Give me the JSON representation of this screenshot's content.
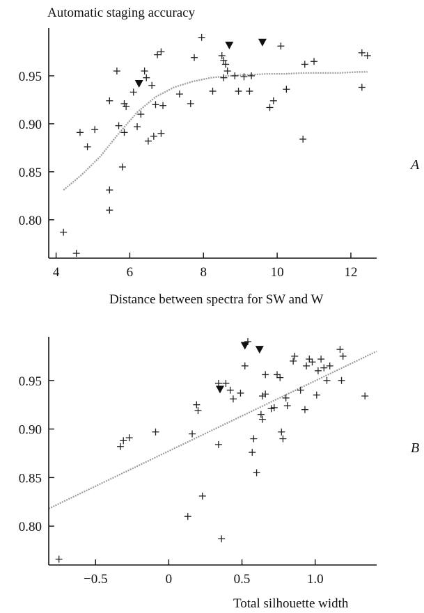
{
  "chart_data": [
    {
      "type": "scatter",
      "panel_label": "A",
      "title": "Automatic staging accuracy",
      "xlabel": "Distance between spectra for SW and W",
      "ylabel": "",
      "xlim": [
        3.8,
        12.7
      ],
      "ylim": [
        0.76,
        1.0
      ],
      "x_ticks": [
        4,
        6,
        8,
        10,
        12
      ],
      "x_tick_labels": [
        "4",
        "6",
        "8",
        "10",
        "12"
      ],
      "y_ticks": [
        0.8,
        0.85,
        0.9,
        0.95
      ],
      "y_tick_labels": [
        "0.80",
        "0.85",
        "0.90",
        "0.95"
      ],
      "grid": false,
      "points": [
        {
          "x": 4.2,
          "y": 0.787
        },
        {
          "x": 4.55,
          "y": 0.765
        },
        {
          "x": 4.65,
          "y": 0.891
        },
        {
          "x": 4.85,
          "y": 0.876
        },
        {
          "x": 5.05,
          "y": 0.894
        },
        {
          "x": 5.45,
          "y": 0.924
        },
        {
          "x": 5.45,
          "y": 0.831
        },
        {
          "x": 5.45,
          "y": 0.81
        },
        {
          "x": 5.65,
          "y": 0.955
        },
        {
          "x": 5.7,
          "y": 0.898
        },
        {
          "x": 5.8,
          "y": 0.855
        },
        {
          "x": 5.85,
          "y": 0.891
        },
        {
          "x": 5.85,
          "y": 0.921
        },
        {
          "x": 5.9,
          "y": 0.918
        },
        {
          "x": 6.1,
          "y": 0.933
        },
        {
          "x": 6.2,
          "y": 0.897
        },
        {
          "x": 6.3,
          "y": 0.91
        },
        {
          "x": 6.4,
          "y": 0.955
        },
        {
          "x": 6.45,
          "y": 0.948
        },
        {
          "x": 6.5,
          "y": 0.882
        },
        {
          "x": 6.6,
          "y": 0.94
        },
        {
          "x": 6.65,
          "y": 0.887
        },
        {
          "x": 6.7,
          "y": 0.92
        },
        {
          "x": 6.75,
          "y": 0.972
        },
        {
          "x": 6.85,
          "y": 0.975
        },
        {
          "x": 6.85,
          "y": 0.89
        },
        {
          "x": 6.9,
          "y": 0.919
        },
        {
          "x": 7.35,
          "y": 0.931
        },
        {
          "x": 7.65,
          "y": 0.921
        },
        {
          "x": 7.75,
          "y": 0.969
        },
        {
          "x": 7.95,
          "y": 0.99
        },
        {
          "x": 8.25,
          "y": 0.934
        },
        {
          "x": 8.5,
          "y": 0.971
        },
        {
          "x": 8.55,
          "y": 0.948
        },
        {
          "x": 8.55,
          "y": 0.966
        },
        {
          "x": 8.6,
          "y": 0.962
        },
        {
          "x": 8.65,
          "y": 0.955
        },
        {
          "x": 8.85,
          "y": 0.95
        },
        {
          "x": 8.95,
          "y": 0.934
        },
        {
          "x": 9.1,
          "y": 0.949
        },
        {
          "x": 9.25,
          "y": 0.934
        },
        {
          "x": 9.3,
          "y": 0.95
        },
        {
          "x": 9.8,
          "y": 0.917
        },
        {
          "x": 9.9,
          "y": 0.924
        },
        {
          "x": 10.1,
          "y": 0.981
        },
        {
          "x": 10.25,
          "y": 0.936
        },
        {
          "x": 10.7,
          "y": 0.884
        },
        {
          "x": 10.75,
          "y": 0.962
        },
        {
          "x": 11.0,
          "y": 0.965
        },
        {
          "x": 12.3,
          "y": 0.974
        },
        {
          "x": 12.3,
          "y": 0.938
        },
        {
          "x": 12.45,
          "y": 0.971
        }
      ],
      "highlighted_points": [
        {
          "x": 6.25,
          "y": 0.942
        },
        {
          "x": 8.7,
          "y": 0.982
        },
        {
          "x": 9.6,
          "y": 0.985
        }
      ],
      "trend_line": {
        "x": [
          4.2,
          4.7,
          5.2,
          5.7,
          6.2,
          6.7,
          7.2,
          7.7,
          8.2,
          8.7,
          9.2,
          9.7,
          10.2,
          10.7,
          11.2,
          11.7,
          12.2,
          12.45
        ],
        "y": [
          0.831,
          0.847,
          0.866,
          0.89,
          0.912,
          0.928,
          0.938,
          0.944,
          0.948,
          0.95,
          0.951,
          0.952,
          0.952,
          0.953,
          0.953,
          0.953,
          0.954,
          0.954
        ]
      }
    },
    {
      "type": "scatter",
      "panel_label": "B",
      "title": "",
      "xlabel": "Total silhouette width",
      "ylabel": "",
      "xlim": [
        -0.82,
        1.42
      ],
      "ylim": [
        0.76,
        0.995
      ],
      "x_ticks": [
        -0.5,
        0,
        0.5,
        1.0
      ],
      "x_tick_labels": [
        "−0.5",
        "0",
        "0.5",
        "1.0"
      ],
      "y_ticks": [
        0.8,
        0.85,
        0.9,
        0.95
      ],
      "y_tick_labels": [
        "0.80",
        "0.85",
        "0.90",
        "0.95"
      ],
      "grid": false,
      "points": [
        {
          "x": -0.75,
          "y": 0.766
        },
        {
          "x": -0.33,
          "y": 0.882
        },
        {
          "x": -0.31,
          "y": 0.888
        },
        {
          "x": -0.27,
          "y": 0.891
        },
        {
          "x": -0.09,
          "y": 0.897
        },
        {
          "x": 0.13,
          "y": 0.81
        },
        {
          "x": 0.16,
          "y": 0.895
        },
        {
          "x": 0.19,
          "y": 0.925
        },
        {
          "x": 0.2,
          "y": 0.919
        },
        {
          "x": 0.23,
          "y": 0.831
        },
        {
          "x": 0.34,
          "y": 0.884
        },
        {
          "x": 0.34,
          "y": 0.947
        },
        {
          "x": 0.36,
          "y": 0.787
        },
        {
          "x": 0.39,
          "y": 0.947
        },
        {
          "x": 0.42,
          "y": 0.94
        },
        {
          "x": 0.44,
          "y": 0.931
        },
        {
          "x": 0.49,
          "y": 0.937
        },
        {
          "x": 0.52,
          "y": 0.965
        },
        {
          "x": 0.54,
          "y": 0.99
        },
        {
          "x": 0.57,
          "y": 0.876
        },
        {
          "x": 0.58,
          "y": 0.89
        },
        {
          "x": 0.6,
          "y": 0.855
        },
        {
          "x": 0.63,
          "y": 0.915
        },
        {
          "x": 0.64,
          "y": 0.91
        },
        {
          "x": 0.64,
          "y": 0.934
        },
        {
          "x": 0.66,
          "y": 0.956
        },
        {
          "x": 0.66,
          "y": 0.936
        },
        {
          "x": 0.7,
          "y": 0.921
        },
        {
          "x": 0.72,
          "y": 0.922
        },
        {
          "x": 0.74,
          "y": 0.956
        },
        {
          "x": 0.76,
          "y": 0.953
        },
        {
          "x": 0.77,
          "y": 0.897
        },
        {
          "x": 0.78,
          "y": 0.89
        },
        {
          "x": 0.8,
          "y": 0.932
        },
        {
          "x": 0.81,
          "y": 0.924
        },
        {
          "x": 0.85,
          "y": 0.97
        },
        {
          "x": 0.86,
          "y": 0.975
        },
        {
          "x": 0.9,
          "y": 0.94
        },
        {
          "x": 0.93,
          "y": 0.92
        },
        {
          "x": 0.94,
          "y": 0.965
        },
        {
          "x": 0.96,
          "y": 0.972
        },
        {
          "x": 0.98,
          "y": 0.969
        },
        {
          "x": 1.01,
          "y": 0.935
        },
        {
          "x": 1.02,
          "y": 0.96
        },
        {
          "x": 1.04,
          "y": 0.972
        },
        {
          "x": 1.06,
          "y": 0.963
        },
        {
          "x": 1.08,
          "y": 0.95
        },
        {
          "x": 1.1,
          "y": 0.965
        },
        {
          "x": 1.17,
          "y": 0.982
        },
        {
          "x": 1.18,
          "y": 0.95
        },
        {
          "x": 1.19,
          "y": 0.975
        },
        {
          "x": 1.34,
          "y": 0.934
        }
      ],
      "highlighted_points": [
        {
          "x": 0.35,
          "y": 0.941
        },
        {
          "x": 0.52,
          "y": 0.986
        },
        {
          "x": 0.62,
          "y": 0.982
        }
      ],
      "trend_line": {
        "x": [
          -0.82,
          1.42
        ],
        "y": [
          0.818,
          0.98
        ]
      }
    }
  ]
}
